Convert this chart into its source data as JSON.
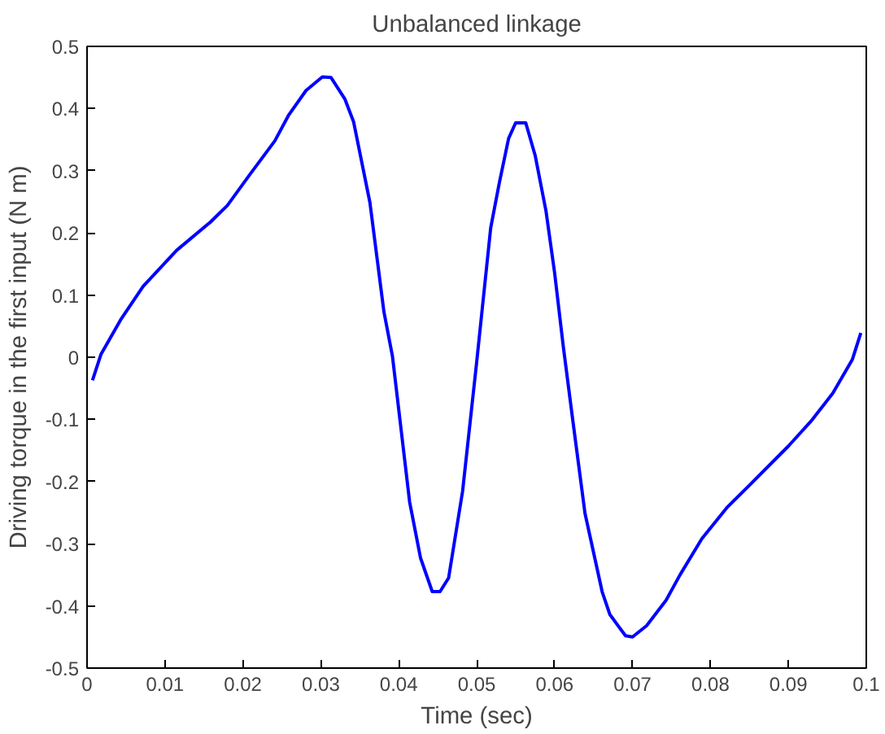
{
  "chart_data": {
    "type": "line",
    "title": "Unbalanced linkage",
    "xlabel": "Time (sec)",
    "ylabel": "Driving torque in the first input (N m)",
    "xlim": [
      0,
      0.1
    ],
    "ylim": [
      -0.5,
      0.5
    ],
    "xticks": [
      0,
      0.01,
      0.02,
      0.03,
      0.04,
      0.05,
      0.06,
      0.07,
      0.08,
      0.09,
      0.1
    ],
    "yticks": [
      -0.5,
      -0.4,
      -0.3,
      -0.2,
      -0.1,
      0,
      0.1,
      0.2,
      0.3,
      0.4,
      0.5
    ],
    "grid": false,
    "marker": "none",
    "line_style": "solid",
    "series": [
      {
        "color": "#0000ff",
        "x": [
          0.0007,
          0.0018,
          0.0043,
          0.0072,
          0.0115,
          0.0158,
          0.018,
          0.0209,
          0.0241,
          0.0259,
          0.0281,
          0.0302,
          0.0313,
          0.0331,
          0.0342,
          0.0363,
          0.0381,
          0.0392,
          0.0403,
          0.0414,
          0.0428,
          0.0443,
          0.0453,
          0.0464,
          0.0482,
          0.05,
          0.0518,
          0.0529,
          0.0541,
          0.055,
          0.0563,
          0.0575,
          0.0589,
          0.06,
          0.0611,
          0.0623,
          0.0639,
          0.0661,
          0.0671,
          0.0691,
          0.07,
          0.0718,
          0.0743,
          0.0761,
          0.0789,
          0.0821,
          0.085,
          0.09,
          0.0929,
          0.0957,
          0.0982,
          0.0993
        ],
        "values": [
          -0.037,
          0.005,
          0.06,
          0.114,
          0.172,
          0.217,
          0.244,
          0.294,
          0.348,
          0.39,
          0.429,
          0.451,
          0.45,
          0.415,
          0.379,
          0.249,
          0.073,
          0.001,
          -0.116,
          -0.233,
          -0.323,
          -0.377,
          -0.377,
          -0.355,
          -0.215,
          -0.008,
          0.208,
          0.28,
          0.352,
          0.377,
          0.377,
          0.325,
          0.235,
          0.136,
          0.019,
          -0.098,
          -0.251,
          -0.377,
          -0.414,
          -0.448,
          -0.45,
          -0.432,
          -0.391,
          -0.35,
          -0.292,
          -0.242,
          -0.206,
          -0.143,
          -0.103,
          -0.058,
          -0.004,
          0.039
        ]
      }
    ]
  }
}
